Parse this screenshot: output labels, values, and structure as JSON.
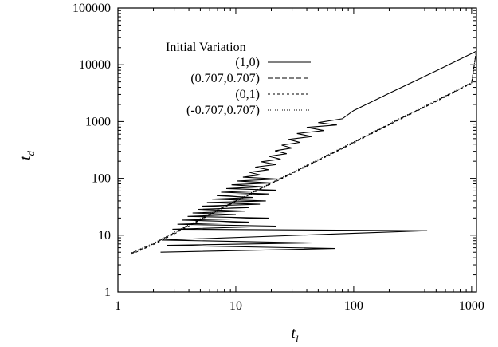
{
  "chart_data": {
    "type": "line",
    "xscale": "log",
    "yscale": "log",
    "xlim": [
      1,
      1100
    ],
    "ylim": [
      1,
      100000
    ],
    "xlabel": {
      "base": "t",
      "sub": "l"
    },
    "ylabel": {
      "base": "t",
      "sub": "d"
    },
    "x_ticks": [
      {
        "value": 1,
        "label": "1"
      },
      {
        "value": 10,
        "label": "10"
      },
      {
        "value": 100,
        "label": "100"
      },
      {
        "value": 1000,
        "label": "1000"
      }
    ],
    "y_ticks": [
      {
        "value": 1,
        "label": "1"
      },
      {
        "value": 10,
        "label": "10"
      },
      {
        "value": 100,
        "label": "100"
      },
      {
        "value": 1000,
        "label": "1000"
      },
      {
        "value": 10000,
        "label": "10000"
      },
      {
        "value": 100000,
        "label": "100000"
      }
    ],
    "grid": false,
    "legend_title": "Initial Variation",
    "legend_position": "top-left",
    "series": [
      {
        "name": "(1,0)",
        "dash": "",
        "points": [
          [
            2.3,
            5
          ],
          [
            70,
            5.8
          ],
          [
            2.6,
            6.6
          ],
          [
            45,
            7.3
          ],
          [
            2.4,
            8.2
          ],
          [
            420,
            12
          ],
          [
            2.9,
            12.7
          ],
          [
            22,
            14.4
          ],
          [
            3.2,
            15.5
          ],
          [
            13,
            17
          ],
          [
            3.5,
            18.4
          ],
          [
            19,
            20
          ],
          [
            3.9,
            21.4
          ],
          [
            10,
            23
          ],
          [
            4.3,
            24.6
          ],
          [
            12,
            26.5
          ],
          [
            4.8,
            28.4
          ],
          [
            13,
            30.5
          ],
          [
            5.2,
            32.5
          ],
          [
            16,
            35
          ],
          [
            5.7,
            37.5
          ],
          [
            18,
            40
          ],
          [
            6.3,
            43
          ],
          [
            14,
            46
          ],
          [
            6.9,
            49.5
          ],
          [
            19,
            53
          ],
          [
            7.5,
            57
          ],
          [
            22,
            62
          ],
          [
            8.3,
            66
          ],
          [
            17,
            71
          ],
          [
            9.2,
            77
          ],
          [
            20,
            83
          ],
          [
            10.3,
            90
          ],
          [
            23,
            97
          ],
          [
            11.5,
            105
          ],
          [
            16,
            115
          ],
          [
            13,
            128
          ],
          [
            19,
            142
          ],
          [
            14.6,
            158
          ],
          [
            22,
            175
          ],
          [
            16.5,
            196
          ],
          [
            24,
            218
          ],
          [
            19,
            244
          ],
          [
            27,
            272
          ],
          [
            21.5,
            305
          ],
          [
            30,
            342
          ],
          [
            24.5,
            384
          ],
          [
            35,
            430
          ],
          [
            28,
            485
          ],
          [
            44,
            545
          ],
          [
            33,
            615
          ],
          [
            56,
            695
          ],
          [
            40,
            790
          ],
          [
            72,
            870
          ],
          [
            50,
            960
          ],
          [
            80,
            1120
          ],
          [
            100,
            1560
          ],
          [
            200,
            3150
          ],
          [
            500,
            7800
          ],
          [
            1100,
            17400
          ]
        ]
      },
      {
        "name": "(0.707,0.707)",
        "dash": "6,3",
        "points": [
          [
            1.3,
            4.8
          ],
          [
            2,
            7
          ],
          [
            3,
            11
          ],
          [
            5,
            19
          ],
          [
            10,
            40
          ],
          [
            20,
            82
          ],
          [
            50,
            210
          ],
          [
            100,
            430
          ],
          [
            200,
            900
          ],
          [
            500,
            2300
          ],
          [
            1000,
            4800
          ],
          [
            1100,
            18500
          ]
        ]
      },
      {
        "name": "(0,1)",
        "dash": "3,3",
        "points": [
          [
            1.3,
            4.6
          ],
          [
            2,
            6.8
          ],
          [
            3,
            10.5
          ],
          [
            5,
            18.5
          ],
          [
            10,
            39
          ],
          [
            20,
            80
          ],
          [
            50,
            205
          ],
          [
            100,
            420
          ],
          [
            200,
            880
          ],
          [
            500,
            2250
          ],
          [
            1000,
            4700
          ],
          [
            1100,
            18300
          ]
        ]
      },
      {
        "name": "(-0.707,0.707)",
        "dash": "1,2",
        "points": [
          [
            1.3,
            4.9
          ],
          [
            2,
            7.2
          ],
          [
            3,
            11.2
          ],
          [
            5,
            19.5
          ],
          [
            10,
            41
          ],
          [
            20,
            84
          ],
          [
            50,
            215
          ],
          [
            100,
            440
          ],
          [
            200,
            920
          ],
          [
            500,
            2350
          ],
          [
            1000,
            4900
          ],
          [
            1100,
            18700
          ]
        ]
      }
    ]
  }
}
